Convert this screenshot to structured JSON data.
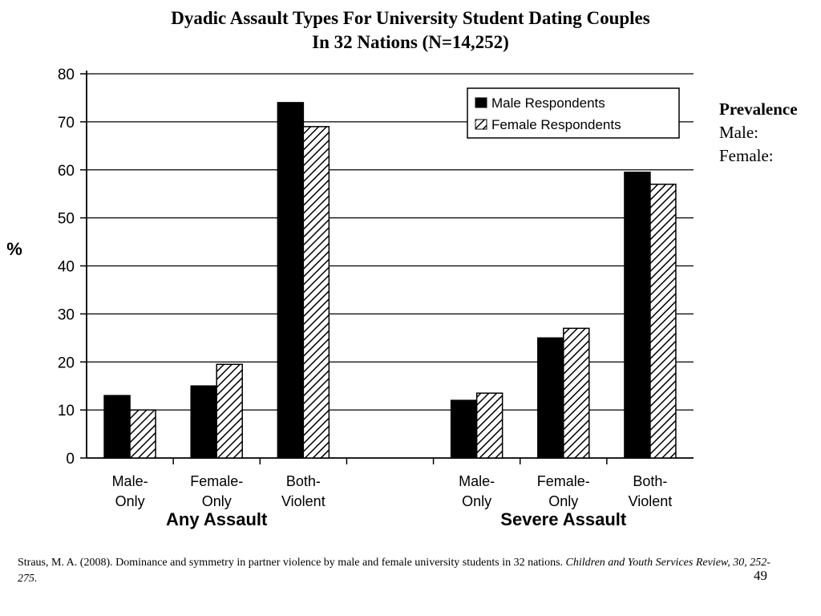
{
  "title": {
    "line1": "Dyadic Assault Types For University Student Dating Couples",
    "line2": "In 32 Nations (N=14,252)"
  },
  "side_panel": {
    "heading": "Prevalence",
    "male_label": "Male:",
    "female_label": "Female:"
  },
  "citation": {
    "text": "Straus, M. A. (2008). Dominance and symmetry in partner violence by male and female university students in 32 nations. ",
    "journal": "Children and Youth Services Review, 30, 252-275."
  },
  "page_number": "49",
  "colors": {
    "male": "#000000",
    "female_hatch": "#000000",
    "background": "#ffffff",
    "grid": "#000000"
  },
  "chart_data": {
    "type": "bar",
    "ylabel": "%",
    "ylim": [
      0,
      80
    ],
    "yticks": [
      0,
      10,
      20,
      30,
      40,
      50,
      60,
      70,
      80
    ],
    "grid": true,
    "legend_position": "top-right",
    "groups": [
      {
        "label": "Any Assault",
        "categories": [
          "Male-\nOnly",
          "Female-\nOnly",
          "Both-\nViolent"
        ],
        "series": [
          {
            "name": "Male Respondents",
            "values": [
              13,
              15,
              74
            ]
          },
          {
            "name": "Female Respondents",
            "values": [
              10,
              19.5,
              69
            ]
          }
        ]
      },
      {
        "label": "Severe Assault",
        "categories": [
          "Male-\nOnly",
          "Female-\nOnly",
          "Both-\nViolent"
        ],
        "series": [
          {
            "name": "Male Respondents",
            "values": [
              12,
              25,
              59.5
            ]
          },
          {
            "name": "Female Respondents",
            "values": [
              13.5,
              27,
              57
            ]
          }
        ]
      }
    ]
  }
}
